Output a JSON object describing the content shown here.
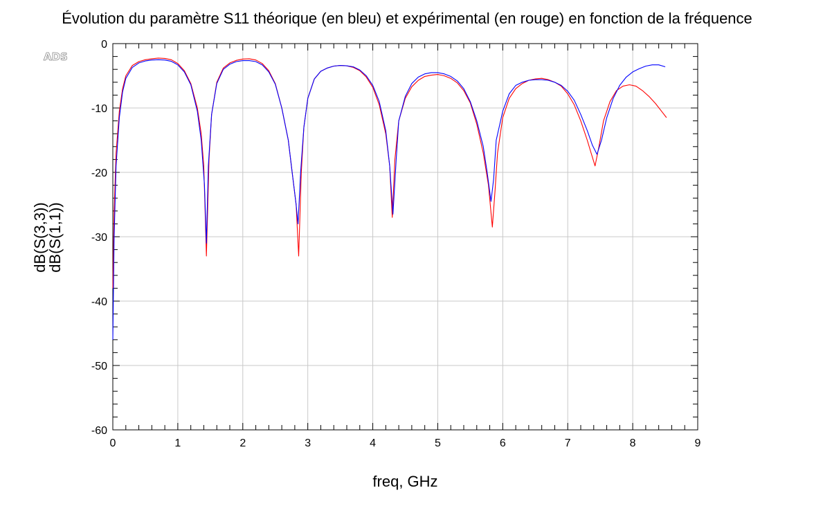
{
  "chart_data": {
    "type": "line",
    "title": "Évolution du paramètre S11 théorique (en bleu) et expérimental (en rouge) en fonction de la fréquence",
    "xlabel": "freq, GHz",
    "ylabels": [
      {
        "text": "dB(S(3,3))",
        "color": "#ff0000"
      },
      {
        "text": "dB(S(1,1))",
        "color": "#0000ff"
      }
    ],
    "watermark": "ADS",
    "xlim": [
      0,
      9
    ],
    "ylim": [
      -60,
      0
    ],
    "xticks": [
      "0",
      "1",
      "2",
      "3",
      "4",
      "5",
      "6",
      "7",
      "8",
      "9"
    ],
    "yticks": [
      "0",
      "-10",
      "-20",
      "-30",
      "-40",
      "-50",
      "-60"
    ],
    "grid": true,
    "series": [
      {
        "name": "dB(S(3,3))",
        "color": "#ff0000",
        "x": [
          0.0,
          0.02,
          0.05,
          0.1,
          0.15,
          0.2,
          0.3,
          0.4,
          0.5,
          0.6,
          0.7,
          0.8,
          0.9,
          1.0,
          1.1,
          1.2,
          1.3,
          1.36,
          1.4,
          1.44,
          1.48,
          1.52,
          1.6,
          1.7,
          1.8,
          1.9,
          2.0,
          2.1,
          2.2,
          2.3,
          2.4,
          2.5,
          2.6,
          2.7,
          2.76,
          2.82,
          2.86,
          2.9,
          2.94,
          3.0,
          3.1,
          3.2,
          3.3,
          3.4,
          3.5,
          3.6,
          3.7,
          3.8,
          3.9,
          4.0,
          4.1,
          4.2,
          4.26,
          4.3,
          4.34,
          4.4,
          4.5,
          4.6,
          4.7,
          4.8,
          4.9,
          5.0,
          5.1,
          5.2,
          5.3,
          5.4,
          5.5,
          5.6,
          5.7,
          5.78,
          5.84,
          5.88,
          5.92,
          6.0,
          6.1,
          6.2,
          6.3,
          6.4,
          6.5,
          6.6,
          6.7,
          6.8,
          6.9,
          7.0,
          7.1,
          7.2,
          7.3,
          7.36,
          7.42,
          7.48,
          7.55,
          7.65,
          7.75,
          7.85,
          7.95,
          8.05,
          8.15,
          8.25,
          8.35,
          8.45,
          8.52
        ],
        "y": [
          -38,
          -26,
          -17,
          -10.5,
          -7,
          -5,
          -3.4,
          -2.8,
          -2.5,
          -2.35,
          -2.25,
          -2.3,
          -2.5,
          -3.1,
          -4.2,
          -6.2,
          -10,
          -14,
          -19,
          -33,
          -18,
          -11,
          -6,
          -3.8,
          -3.0,
          -2.6,
          -2.4,
          -2.35,
          -2.55,
          -3.1,
          -4.2,
          -6.2,
          -10,
          -15,
          -20,
          -25,
          -33,
          -20,
          -13,
          -8.5,
          -5.5,
          -4.3,
          -3.8,
          -3.5,
          -3.4,
          -3.45,
          -3.7,
          -4.2,
          -5.2,
          -6.8,
          -9.5,
          -14,
          -19,
          -27,
          -18,
          -12,
          -8.5,
          -6.7,
          -5.7,
          -5.1,
          -4.9,
          -4.8,
          -5.0,
          -5.4,
          -6.1,
          -7.3,
          -9.2,
          -12.5,
          -17,
          -22,
          -28.5,
          -23,
          -17,
          -11.5,
          -8.5,
          -7.0,
          -6.2,
          -5.7,
          -5.5,
          -5.4,
          -5.6,
          -6.0,
          -6.6,
          -7.8,
          -9.5,
          -12,
          -15,
          -17,
          -19,
          -16,
          -12,
          -9.0,
          -7.3,
          -6.6,
          -6.4,
          -6.6,
          -7.3,
          -8.2,
          -9.3,
          -10.6,
          -11.5
        ]
      },
      {
        "name": "dB(S(1,1))",
        "color": "#0000ff",
        "x": [
          0.0,
          0.02,
          0.05,
          0.1,
          0.15,
          0.2,
          0.3,
          0.4,
          0.5,
          0.6,
          0.7,
          0.8,
          0.9,
          1.0,
          1.1,
          1.2,
          1.3,
          1.36,
          1.41,
          1.44,
          1.47,
          1.52,
          1.6,
          1.7,
          1.8,
          1.9,
          2.0,
          2.1,
          2.2,
          2.3,
          2.4,
          2.5,
          2.6,
          2.7,
          2.76,
          2.82,
          2.85,
          2.89,
          2.94,
          3.0,
          3.1,
          3.2,
          3.3,
          3.4,
          3.5,
          3.6,
          3.7,
          3.8,
          3.9,
          4.0,
          4.1,
          4.2,
          4.26,
          4.31,
          4.36,
          4.4,
          4.5,
          4.6,
          4.7,
          4.8,
          4.9,
          5.0,
          5.1,
          5.2,
          5.3,
          5.4,
          5.5,
          5.6,
          5.7,
          5.76,
          5.82,
          5.86,
          5.9,
          6.0,
          6.1,
          6.2,
          6.3,
          6.4,
          6.5,
          6.6,
          6.7,
          6.8,
          6.9,
          7.0,
          7.1,
          7.2,
          7.3,
          7.38,
          7.45,
          7.52,
          7.6,
          7.7,
          7.8,
          7.9,
          8.0,
          8.1,
          8.2,
          8.3,
          8.4,
          8.5
        ],
        "y": [
          -46,
          -30,
          -19,
          -11.5,
          -7.5,
          -5.4,
          -3.7,
          -3.0,
          -2.7,
          -2.55,
          -2.5,
          -2.55,
          -2.75,
          -3.3,
          -4.4,
          -6.4,
          -10.5,
          -15,
          -22,
          -31,
          -19,
          -11,
          -6.2,
          -4.0,
          -3.2,
          -2.8,
          -2.65,
          -2.65,
          -2.8,
          -3.3,
          -4.4,
          -6.3,
          -10,
          -15,
          -20,
          -25,
          -28,
          -20,
          -13,
          -8.5,
          -5.5,
          -4.3,
          -3.8,
          -3.5,
          -3.4,
          -3.45,
          -3.6,
          -4.1,
          -5.0,
          -6.5,
          -9,
          -13.5,
          -19,
          -26.5,
          -18,
          -12,
          -8.2,
          -6.2,
          -5.2,
          -4.7,
          -4.5,
          -4.5,
          -4.7,
          -5.1,
          -5.8,
          -7.0,
          -9.0,
          -12,
          -16,
          -20,
          -24.5,
          -21,
          -15,
          -10.5,
          -7.8,
          -6.5,
          -6.0,
          -5.7,
          -5.6,
          -5.6,
          -5.7,
          -6.0,
          -6.5,
          -7.4,
          -8.8,
          -11,
          -13.5,
          -15.8,
          -17.2,
          -15,
          -11.5,
          -8.5,
          -6.5,
          -5.2,
          -4.4,
          -3.9,
          -3.5,
          -3.3,
          -3.3,
          -3.6
        ]
      }
    ]
  }
}
